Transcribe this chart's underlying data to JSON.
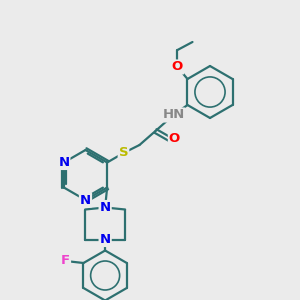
{
  "bg_color": "#ebebeb",
  "bond_color": "#2d7070",
  "bond_width": 1.6,
  "atom_colors": {
    "N": "#0000ee",
    "O": "#ff0000",
    "S": "#bbbb00",
    "F": "#ee44cc",
    "C": "#2d7070"
  },
  "font_size": 9.5,
  "fig_size": [
    3.0,
    3.0
  ],
  "dpi": 100
}
